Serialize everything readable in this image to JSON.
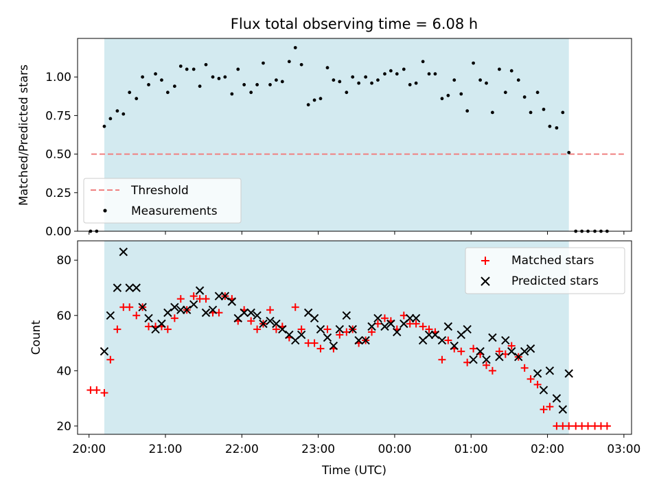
{
  "chart_data": [
    {
      "type": "scatter",
      "title": "Flux total observing time = 6.08 h",
      "xlabel": "",
      "ylabel": "Matched/Predicted stars",
      "ylim": [
        0,
        1.25
      ],
      "yticks": [
        "0.00",
        "0.25",
        "0.50",
        "0.75",
        "1.00"
      ],
      "xlim": [
        19.85,
        27.1
      ],
      "shaded_span": [
        20.2,
        26.28
      ],
      "shade_color": "#d3eaf0",
      "threshold": {
        "name": "Threshold",
        "value": 0.5,
        "x": [
          20.03,
          26.28,
          27.0
        ],
        "color": "#f08080"
      },
      "legend": {
        "placement": "lower-left",
        "entries": [
          "Threshold",
          "Measurements"
        ]
      },
      "series": [
        {
          "name": "Measurements",
          "color": "#000000",
          "x": [
            20.02,
            20.1,
            20.2,
            20.28,
            20.37,
            20.45,
            20.53,
            20.62,
            20.7,
            20.78,
            20.87,
            20.95,
            21.03,
            21.12,
            21.2,
            21.28,
            21.37,
            21.45,
            21.53,
            21.62,
            21.7,
            21.78,
            21.87,
            21.95,
            22.03,
            22.12,
            22.2,
            22.28,
            22.37,
            22.45,
            22.53,
            22.62,
            22.7,
            22.78,
            22.87,
            22.95,
            23.03,
            23.12,
            23.2,
            23.28,
            23.37,
            23.45,
            23.53,
            23.62,
            23.7,
            23.78,
            23.87,
            23.95,
            24.03,
            24.12,
            24.2,
            24.28,
            24.37,
            24.45,
            24.53,
            24.62,
            24.7,
            24.78,
            24.87,
            24.95,
            25.03,
            25.12,
            25.2,
            25.28,
            25.37,
            25.45,
            25.53,
            25.62,
            25.7,
            25.78,
            25.87,
            25.95,
            26.03,
            26.12,
            26.2,
            26.28,
            26.37,
            26.45,
            26.53,
            26.62,
            26.7,
            26.78
          ],
          "y": [
            0.0,
            0.0,
            0.68,
            0.73,
            0.78,
            0.76,
            0.9,
            0.86,
            1.0,
            0.95,
            1.02,
            0.98,
            0.9,
            0.94,
            1.07,
            1.05,
            1.05,
            0.94,
            1.08,
            1.0,
            0.99,
            1.0,
            0.89,
            1.05,
            0.95,
            0.9,
            0.95,
            1.09,
            0.95,
            0.98,
            0.97,
            1.1,
            1.19,
            1.08,
            0.82,
            0.85,
            0.86,
            1.06,
            0.98,
            0.97,
            0.9,
            1.0,
            0.96,
            1.0,
            0.96,
            0.98,
            1.02,
            1.04,
            1.02,
            1.05,
            0.95,
            0.96,
            1.1,
            1.02,
            1.02,
            0.86,
            0.88,
            0.98,
            0.89,
            0.78,
            1.09,
            0.98,
            0.96,
            0.77,
            1.05,
            0.9,
            1.04,
            0.98,
            0.87,
            0.77,
            0.9,
            0.79,
            0.68,
            0.67,
            0.77,
            0.51,
            0.0,
            0.0,
            0.0,
            0.0,
            0.0,
            0.0
          ]
        }
      ]
    },
    {
      "type": "scatter",
      "xlabel": "Time (UTC)",
      "ylabel": "Count",
      "ylim": [
        17,
        87
      ],
      "yticks": [
        "20",
        "40",
        "60",
        "80"
      ],
      "xlim": [
        19.85,
        27.1
      ],
      "xticks": [
        "20:00",
        "21:00",
        "22:00",
        "23:00",
        "00:00",
        "01:00",
        "02:00",
        "03:00"
      ],
      "xtick_values": [
        20,
        21,
        22,
        23,
        24,
        25,
        26,
        27
      ],
      "shaded_span": [
        20.2,
        26.28
      ],
      "shade_color": "#d3eaf0",
      "legend": {
        "placement": "upper-right",
        "entries": [
          "Matched stars",
          "Predicted stars"
        ]
      },
      "series": [
        {
          "name": "Matched stars",
          "color": "#ff0000",
          "marker": "plus",
          "x": [
            20.02,
            20.1,
            20.2,
            20.28,
            20.37,
            20.45,
            20.53,
            20.62,
            20.7,
            20.78,
            20.87,
            20.95,
            21.03,
            21.12,
            21.2,
            21.28,
            21.37,
            21.45,
            21.53,
            21.62,
            21.7,
            21.78,
            21.87,
            21.95,
            22.03,
            22.12,
            22.2,
            22.28,
            22.37,
            22.45,
            22.53,
            22.62,
            22.7,
            22.78,
            22.87,
            22.95,
            23.03,
            23.12,
            23.2,
            23.28,
            23.37,
            23.45,
            23.53,
            23.62,
            23.7,
            23.78,
            23.87,
            23.95,
            24.03,
            24.12,
            24.2,
            24.28,
            24.37,
            24.45,
            24.53,
            24.62,
            24.7,
            24.78,
            24.87,
            24.95,
            25.03,
            25.12,
            25.2,
            25.28,
            25.37,
            25.45,
            25.53,
            25.62,
            25.7,
            25.78,
            25.87,
            25.95,
            26.03,
            26.12,
            26.2,
            26.28,
            26.37,
            26.45,
            26.53,
            26.62,
            26.7,
            26.78
          ],
          "y": [
            33,
            33,
            32,
            44,
            55,
            63,
            63,
            60,
            63,
            56,
            56,
            56,
            55,
            59,
            66,
            62,
            67,
            66,
            66,
            61,
            61,
            67,
            66,
            58,
            62,
            58,
            55,
            57,
            62,
            55,
            56,
            52,
            63,
            55,
            50,
            50,
            48,
            55,
            48,
            53,
            54,
            55,
            50,
            51,
            54,
            57,
            59,
            58,
            55,
            60,
            57,
            57,
            56,
            55,
            54,
            44,
            51,
            48,
            47,
            43,
            48,
            46,
            42,
            40,
            47,
            46,
            49,
            45,
            41,
            37,
            35,
            26,
            27,
            20,
            20,
            20,
            20,
            20,
            20,
            20,
            20,
            20
          ]
        },
        {
          "name": "Predicted stars",
          "color": "#000000",
          "marker": "x",
          "x": [
            20.2,
            20.28,
            20.37,
            20.45,
            20.53,
            20.62,
            20.7,
            20.78,
            20.87,
            20.95,
            21.03,
            21.12,
            21.2,
            21.28,
            21.37,
            21.45,
            21.53,
            21.62,
            21.7,
            21.78,
            21.87,
            21.95,
            22.03,
            22.12,
            22.2,
            22.28,
            22.37,
            22.45,
            22.53,
            22.62,
            22.7,
            22.78,
            22.87,
            22.95,
            23.03,
            23.12,
            23.2,
            23.28,
            23.37,
            23.45,
            23.53,
            23.62,
            23.7,
            23.78,
            23.87,
            23.95,
            24.03,
            24.12,
            24.2,
            24.28,
            24.37,
            24.45,
            24.53,
            24.62,
            24.7,
            24.78,
            24.87,
            24.95,
            25.03,
            25.12,
            25.2,
            25.28,
            25.37,
            25.45,
            25.53,
            25.62,
            25.7,
            25.78,
            25.87,
            25.95,
            26.03,
            26.12,
            26.2,
            26.28
          ],
          "y": [
            47,
            60,
            70,
            83,
            70,
            70,
            63,
            59,
            55,
            57,
            61,
            63,
            62,
            62,
            64,
            69,
            61,
            62,
            67,
            67,
            65,
            59,
            61,
            61,
            60,
            57,
            58,
            57,
            55,
            53,
            51,
            53,
            61,
            59,
            55,
            52,
            49,
            55,
            60,
            55,
            51,
            51,
            56,
            59,
            56,
            57,
            54,
            57,
            59,
            59,
            51,
            53,
            53,
            51,
            56,
            49,
            53,
            55,
            44,
            47,
            44,
            52,
            45,
            51,
            47,
            45,
            47,
            48,
            39,
            33,
            40,
            30,
            26,
            39
          ]
        }
      ]
    }
  ]
}
